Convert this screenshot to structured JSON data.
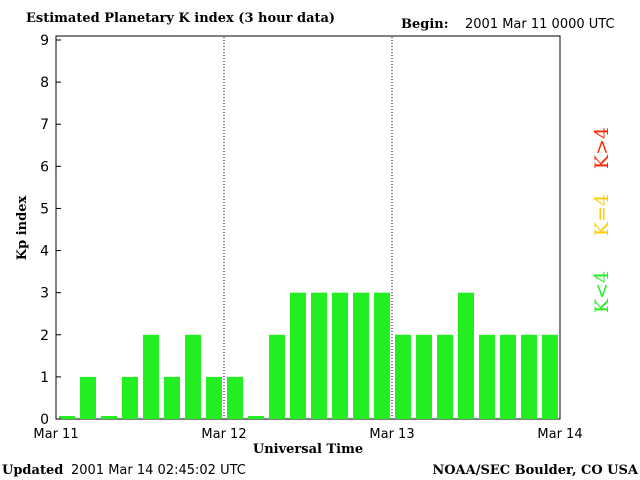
{
  "header": {
    "title": "Estimated Planetary K index (3 hour data)",
    "begin_label": "Begin:",
    "begin_value": "2001 Mar 11 0000 UTC"
  },
  "footer": {
    "updated_label": "Updated",
    "updated_value": "2001 Mar 14 02:45:02 UTC",
    "credit": "NOAA/SEC Boulder, CO USA"
  },
  "legend": {
    "items": [
      {
        "label": "K>4",
        "color": "#ff2a00"
      },
      {
        "label": "K=4",
        "color": "#ffcc00"
      },
      {
        "label": "K<4",
        "color": "#22ee22"
      }
    ]
  },
  "chart_data": {
    "type": "bar",
    "title": "Estimated Planetary K index (3 hour data)",
    "xlabel": "Universal Time",
    "ylabel": "Kp index",
    "ylim": [
      0,
      9
    ],
    "yticks": [
      0,
      1,
      2,
      3,
      4,
      5,
      6,
      7,
      8,
      9
    ],
    "xtick_labels": [
      "Mar 11",
      "Mar 12",
      "Mar 13",
      "Mar 14"
    ],
    "day_dividers": [
      "Mar 12",
      "Mar 13"
    ],
    "grid": false,
    "bar_color": "#22ee22",
    "bar_interval_hours": 3,
    "values": [
      0,
      1,
      0,
      1,
      2,
      1,
      2,
      1,
      1,
      0,
      2,
      3,
      3,
      3,
      3,
      3,
      2,
      2,
      2,
      3,
      2,
      2,
      2,
      2
    ]
  }
}
